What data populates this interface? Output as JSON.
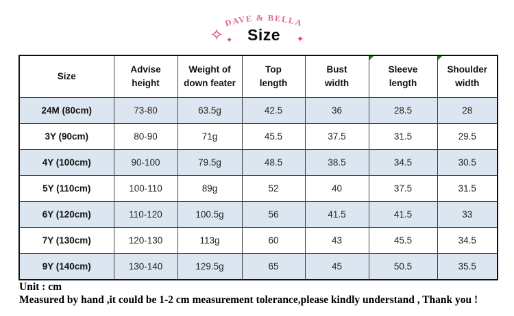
{
  "brand": {
    "name": "DAVE & BELLA",
    "title": "Size"
  },
  "icons": {
    "sparkle_outline": "✧",
    "sparkle_filled": "✦"
  },
  "table": {
    "columns": [
      "Size",
      "Advise\nheight",
      "Weight of\ndown feater",
      "Top\nlength",
      "Bust\nwidth",
      "Sleeve\nlength",
      "Shoulder\nwidth"
    ],
    "marker_columns": [
      5,
      6
    ],
    "rows": [
      [
        "24M (80cm)",
        "73-80",
        "63.5g",
        "42.5",
        "36",
        "28.5",
        "28"
      ],
      [
        "3Y (90cm)",
        "80-90",
        "71g",
        "45.5",
        "37.5",
        "31.5",
        "29.5"
      ],
      [
        "4Y (100cm)",
        "90-100",
        "79.5g",
        "48.5",
        "38.5",
        "34.5",
        "30.5"
      ],
      [
        "5Y (110cm)",
        "100-110",
        "89g",
        "52",
        "40",
        "37.5",
        "31.5"
      ],
      [
        "6Y (120cm)",
        "110-120",
        "100.5g",
        "56",
        "41.5",
        "41.5",
        "33"
      ],
      [
        "7Y (130cm)",
        "120-130",
        "113g",
        "60",
        "43",
        "45.5",
        "34.5"
      ],
      [
        "9Y (140cm)",
        "130-140",
        "129.5g",
        "65",
        "45",
        "50.5",
        "35.5"
      ]
    ]
  },
  "notes": {
    "unit": "Unit : cm",
    "tolerance": "Measured by hand ,it could be 1-2 cm measurement tolerance,please kindly understand , Thank you !"
  },
  "colors": {
    "brand_pink": "#e2688e",
    "sparkle_pink": "#e8306a",
    "row_highlight": "#dce6f1",
    "marker_green": "#0b7d0b"
  }
}
